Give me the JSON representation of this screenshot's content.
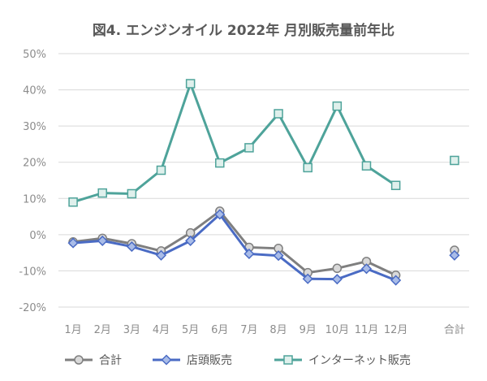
{
  "chart_data": {
    "type": "line",
    "title": "図4. エンジンオイル 2022年 月別販売量前年比",
    "categories": [
      "1月",
      "2月",
      "3月",
      "4月",
      "5月",
      "6月",
      "7月",
      "8月",
      "9月",
      "10月",
      "11月",
      "12月",
      "",
      "合計"
    ],
    "y_ticks": [
      "50%",
      "40%",
      "30%",
      "20%",
      "10%",
      "0%",
      "-10%",
      "-20%"
    ],
    "ylim": [
      -20,
      50
    ],
    "grid": true,
    "legend_position": "bottom",
    "series": [
      {
        "name": "合計",
        "color": "#7f7f7f",
        "marker": "circle",
        "values": [
          -2,
          -1,
          -2.5,
          -4.5,
          0.5,
          6.5,
          -3.5,
          -3.8,
          -10.5,
          -9.3,
          -7.4,
          -11.2,
          null,
          -4.3
        ]
      },
      {
        "name": "店頭販売",
        "color": "#4a6bc4",
        "marker": "diamond",
        "values": [
          -2.3,
          -1.7,
          -3.3,
          -5.7,
          -1.7,
          5.6,
          -5.3,
          -5.8,
          -12.2,
          -12.3,
          -9.4,
          -12.6,
          null,
          -5.7
        ]
      },
      {
        "name": "インターネット販売",
        "color": "#4ea39a",
        "marker": "square",
        "values": [
          9,
          11.5,
          11.3,
          17.8,
          41.7,
          19.8,
          24,
          33.4,
          18.5,
          35.5,
          19,
          13.6,
          null,
          20.5
        ]
      }
    ]
  }
}
